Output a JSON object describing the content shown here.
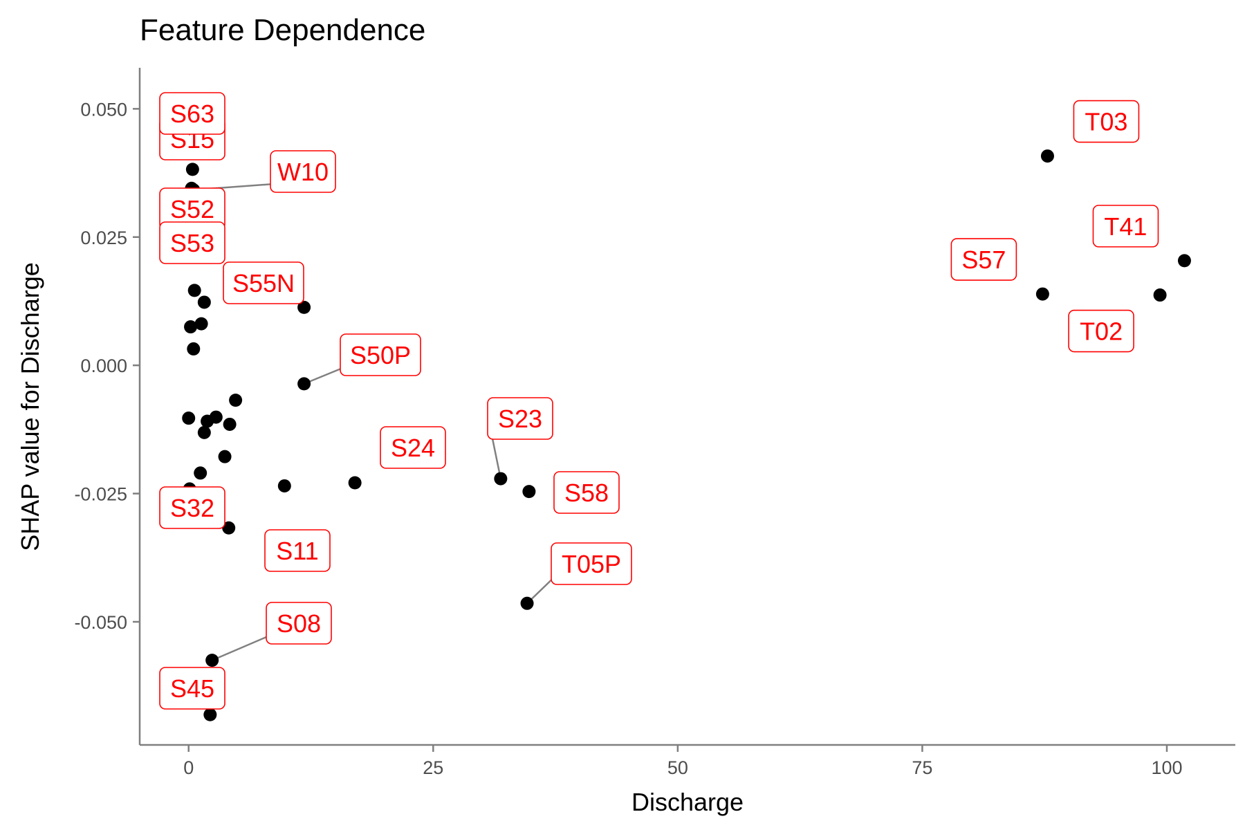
{
  "chart_data": {
    "type": "scatter",
    "title": "Feature Dependence",
    "xlabel": "Discharge",
    "ylabel": "SHAP value for Discharge",
    "xlim": [
      -5,
      107
    ],
    "ylim": [
      -0.074,
      0.058
    ],
    "x_ticks": [
      0,
      25,
      50,
      75,
      100
    ],
    "x_tick_labels": [
      "0",
      "25",
      "50",
      "75",
      "100"
    ],
    "y_ticks": [
      0.05,
      0.025,
      0.0,
      -0.025,
      -0.05
    ],
    "y_tick_labels": [
      "0.050",
      "0.025",
      "0.000",
      "-0.025",
      "-0.050"
    ],
    "grid": false,
    "point_color": "#000000",
    "label_color": "#ff0000",
    "points": [
      {
        "x": 87.8,
        "y": 0.0408,
        "label": "T03"
      },
      {
        "x": 101.8,
        "y": 0.0204,
        "label": "T41"
      },
      {
        "x": 87.3,
        "y": 0.0139,
        "label": "S57"
      },
      {
        "x": 99.3,
        "y": 0.0137,
        "label": "T02"
      },
      {
        "x": 0.4,
        "y": 0.0382,
        "label": "S63"
      },
      {
        "x": 0.3,
        "y": 0.0345,
        "label": "S15"
      },
      {
        "x": 0.5,
        "y": 0.0342,
        "label": "W10"
      },
      {
        "x": 0.6,
        "y": 0.0301,
        "label": "S52"
      },
      {
        "x": 0.6,
        "y": 0.0256,
        "label": "S53"
      },
      {
        "x": 11.8,
        "y": 0.0113,
        "label": "S55N"
      },
      {
        "x": 11.8,
        "y": -0.0036,
        "label": "S50P"
      },
      {
        "x": 0.6,
        "y": 0.0146,
        "label": ""
      },
      {
        "x": 1.6,
        "y": 0.0123,
        "label": ""
      },
      {
        "x": 0.2,
        "y": 0.0075,
        "label": ""
      },
      {
        "x": 1.3,
        "y": 0.0081,
        "label": ""
      },
      {
        "x": 0.5,
        "y": 0.0032,
        "label": ""
      },
      {
        "x": 4.8,
        "y": -0.0068,
        "label": ""
      },
      {
        "x": 0.0,
        "y": -0.0103,
        "label": ""
      },
      {
        "x": 2.8,
        "y": -0.0101,
        "label": ""
      },
      {
        "x": 1.9,
        "y": -0.0109,
        "label": ""
      },
      {
        "x": 4.2,
        "y": -0.0115,
        "label": ""
      },
      {
        "x": 1.6,
        "y": -0.0131,
        "label": ""
      },
      {
        "x": 3.7,
        "y": -0.0178,
        "label": ""
      },
      {
        "x": 1.2,
        "y": -0.021,
        "label": ""
      },
      {
        "x": 0.1,
        "y": -0.0241,
        "label": "S32"
      },
      {
        "x": 4.1,
        "y": -0.0317,
        "label": "S11"
      },
      {
        "x": 9.8,
        "y": -0.0235,
        "label": ""
      },
      {
        "x": 17.0,
        "y": -0.0229,
        "label": "S24"
      },
      {
        "x": 31.9,
        "y": -0.0221,
        "label": "S23"
      },
      {
        "x": 34.8,
        "y": -0.0246,
        "label": "S58"
      },
      {
        "x": 34.6,
        "y": -0.0464,
        "label": "T05P"
      },
      {
        "x": 2.4,
        "y": -0.0575,
        "label": "S08"
      },
      {
        "x": 2.2,
        "y": -0.0681,
        "label": "S45"
      }
    ]
  }
}
